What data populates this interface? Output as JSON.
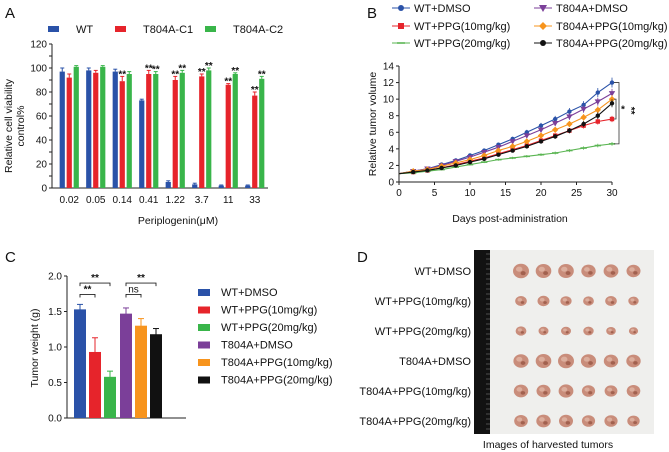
{
  "panels": {
    "a": "A",
    "b": "B",
    "c": "C",
    "d": "D"
  },
  "chart_data": [
    {
      "id": "A",
      "type": "bar",
      "xlabel": "Periplogenin(μM)",
      "ylabel": "Relative cell viability control%",
      "ylabel_lines": [
        "Relative cell viability",
        "control%"
      ],
      "ylim": [
        0,
        120
      ],
      "yticks": [
        0,
        10,
        20,
        30,
        40,
        50,
        60,
        70,
        80,
        90,
        100,
        110,
        120
      ],
      "categories": [
        "0.02",
        "0.05",
        "0.14",
        "0.41",
        "1.22",
        "3.7",
        "11",
        "33"
      ],
      "series": [
        {
          "name": "WT",
          "color": "#2a52a8",
          "values": [
            97,
            98,
            97,
            73,
            5,
            3,
            2,
            2
          ],
          "errors": [
            3,
            2,
            2,
            1,
            1,
            1,
            0.5,
            0.5
          ]
        },
        {
          "name": "T804A-C1",
          "color": "#e6242b",
          "values": [
            92,
            96,
            89,
            95,
            90,
            93,
            86,
            77
          ],
          "errors": [
            3,
            2,
            4,
            3,
            3,
            2,
            1,
            3
          ]
        },
        {
          "name": "T804A-C2",
          "color": "#39b54a",
          "values": [
            101,
            101,
            95,
            95,
            96,
            98,
            95,
            91
          ],
          "errors": [
            1,
            1,
            2,
            2,
            2,
            2,
            1,
            2
          ]
        }
      ],
      "annotations": [
        {
          "text": "**",
          "category": 2,
          "series": 1
        },
        {
          "text": "**",
          "category": 3,
          "series": 1
        },
        {
          "text": "**",
          "category": 3,
          "series": 2
        },
        {
          "text": "**",
          "category": 4,
          "series": 1
        },
        {
          "text": "**",
          "category": 4,
          "series": 2
        },
        {
          "text": "**",
          "category": 5,
          "series": 1
        },
        {
          "text": "**",
          "category": 5,
          "series": 2
        },
        {
          "text": "**",
          "category": 6,
          "series": 1
        },
        {
          "text": "**",
          "category": 6,
          "series": 2
        },
        {
          "text": "**",
          "category": 7,
          "series": 1
        },
        {
          "text": "**",
          "category": 7,
          "series": 2
        }
      ]
    },
    {
      "id": "B",
      "type": "line",
      "xlabel": "Days post-administration",
      "ylabel": "Relative tumor volume",
      "xlim": [
        0,
        30
      ],
      "ylim": [
        0,
        14
      ],
      "xticks": [
        0,
        5,
        10,
        15,
        20,
        25,
        30
      ],
      "yticks": [
        0,
        2,
        4,
        6,
        8,
        10,
        12,
        14
      ],
      "x": [
        0,
        2,
        4,
        6,
        8,
        10,
        12,
        14,
        16,
        18,
        20,
        22,
        24,
        26,
        28,
        30
      ],
      "series": [
        {
          "name": "WT+DMSO",
          "color": "#2a52a8",
          "marker": "circle",
          "values": [
            1,
            1.3,
            1.6,
            2.1,
            2.6,
            3.2,
            3.8,
            4.5,
            5.2,
            6,
            6.8,
            7.6,
            8.5,
            9.3,
            10.8,
            12
          ]
        },
        {
          "name": "T804A+DMSO",
          "color": "#7b3f99",
          "marker": "triangle-down",
          "values": [
            1,
            1.3,
            1.6,
            2,
            2.5,
            3,
            3.6,
            4.2,
            4.9,
            5.6,
            6.3,
            7.1,
            7.9,
            8.8,
            9.7,
            10.7
          ]
        },
        {
          "name": "WT+PPG(10mg/kg)",
          "color": "#e6242b",
          "marker": "square",
          "values": [
            1,
            1.2,
            1.4,
            1.7,
            2.1,
            2.5,
            2.9,
            3.4,
            3.9,
            4.4,
            5,
            5.6,
            6.2,
            6.8,
            7.3,
            7.6
          ]
        },
        {
          "name": "T804A+PPG(10mg/kg)",
          "color": "#f7941d",
          "marker": "diamond",
          "values": [
            1,
            1.3,
            1.5,
            1.9,
            2.3,
            2.7,
            3.2,
            3.8,
            4.3,
            4.9,
            5.6,
            6.3,
            7,
            7.8,
            8.7,
            10
          ]
        },
        {
          "name": "WT+PPG(20mg/kg)",
          "color": "#5ab552",
          "marker": "dash",
          "values": [
            1,
            1.1,
            1.3,
            1.5,
            1.8,
            2.1,
            2.4,
            2.7,
            2.9,
            3.1,
            3.3,
            3.5,
            3.8,
            4.1,
            4.4,
            4.6
          ]
        },
        {
          "name": "T804A+PPG(20mg/kg)",
          "color": "#111111",
          "marker": "circle",
          "values": [
            1,
            1.2,
            1.4,
            1.7,
            2,
            2.4,
            2.8,
            3.3,
            3.8,
            4.3,
            4.9,
            5.5,
            6.2,
            7,
            8,
            9.5
          ]
        }
      ],
      "annotations": [
        "*",
        "**"
      ]
    },
    {
      "id": "C",
      "type": "bar",
      "ylabel": "Tumor weight (g)",
      "ylim": [
        0,
        2
      ],
      "yticks": [
        "0.0",
        "0.5",
        "1.0",
        "1.5",
        "2.0"
      ],
      "categories": [
        "WT+DMSO",
        "WT+PPG(10mg/kg)",
        "WT+PPG(20mg/kg)",
        "T804A+DMSO",
        "T804A+PPG(10mg/kg)",
        "T804A+PPG(20mg/kg)"
      ],
      "colors": [
        "#2a52a8",
        "#e6242b",
        "#39b54a",
        "#7b3f99",
        "#f7941d",
        "#111111"
      ],
      "values": [
        1.53,
        0.93,
        0.58,
        1.47,
        1.3,
        1.18
      ],
      "errors": [
        0.07,
        0.2,
        0.08,
        0.08,
        0.1,
        0.08
      ],
      "comparisons": [
        {
          "from": 0,
          "to": 1,
          "label": "**"
        },
        {
          "from": 0,
          "to": 2,
          "label": "**"
        },
        {
          "from": 3,
          "to": 4,
          "label": "ns"
        },
        {
          "from": 3,
          "to": 5,
          "label": "**"
        }
      ]
    }
  ],
  "panel_d": {
    "rows": [
      "WT+DMSO",
      "WT+PPG(10mg/kg)",
      "WT+PPG(20mg/kg)",
      "T804A+DMSO",
      "T804A+PPG(10mg/kg)",
      "T804A+PPG(20mg/kg)"
    ],
    "caption": "Images of harvested tumors",
    "tumors_per_row": 6
  }
}
